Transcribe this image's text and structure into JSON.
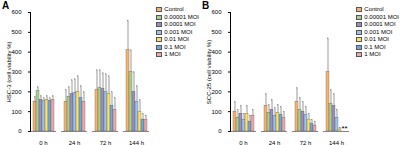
{
  "chart_data": [
    {
      "type": "bar",
      "title": "A",
      "ylabel": "HSC-3 (cell viability %)",
      "categories": [
        "0 h",
        "24 h",
        "72 h",
        "144 h"
      ],
      "ylim": [
        0,
        600
      ],
      "yticks": [
        0,
        100,
        200,
        300,
        400,
        500,
        600
      ],
      "legend": "right",
      "series": [
        {
          "name": "Control",
          "color": "#f8b36b",
          "values": [
            150,
            150,
            210,
            410
          ],
          "errors": [
            25,
            60,
            100,
            150
          ]
        },
        {
          "name": "0.00001 MOI",
          "color": "#a8d08d",
          "values": [
            205,
            175,
            220,
            300
          ],
          "errors": [
            20,
            50,
            90,
            110
          ]
        },
        {
          "name": "0.0001 MOI",
          "color": "#9b8ec4",
          "values": [
            160,
            190,
            215,
            200
          ],
          "errors": [
            20,
            70,
            80,
            100
          ]
        },
        {
          "name": "0.001 MOI",
          "color": "#9dc3e6",
          "values": [
            155,
            195,
            200,
            150
          ],
          "errors": [
            15,
            70,
            90,
            80
          ]
        },
        {
          "name": "0.01 MOI",
          "color": "#ffe066",
          "values": [
            160,
            200,
            190,
            100
          ],
          "errors": [
            20,
            80,
            90,
            60
          ]
        },
        {
          "name": "0.1 MOI",
          "color": "#6fa8dc",
          "values": [
            155,
            170,
            130,
            60
          ],
          "errors": [
            15,
            60,
            70,
            30
          ]
        },
        {
          "name": "1 MOI",
          "color": "#f4a6a6",
          "values": [
            160,
            150,
            110,
            60
          ],
          "errors": [
            20,
            50,
            60,
            20
          ]
        }
      ]
    },
    {
      "type": "bar",
      "title": "B",
      "ylabel": "SCC-25 (cell viability %)",
      "categories": [
        "0 h",
        "24 h",
        "72 h",
        "144 h"
      ],
      "ylim": [
        0,
        600
      ],
      "yticks": [
        0,
        100,
        200,
        300,
        400,
        500,
        600
      ],
      "legend": "right",
      "series": [
        {
          "name": "Control",
          "color": "#f8b36b",
          "values": [
            100,
            130,
            150,
            300
          ],
          "errors": [
            50,
            60,
            70,
            170
          ]
        },
        {
          "name": "0.00001 MOI",
          "color": "#a8d08d",
          "values": [
            70,
            95,
            110,
            140
          ],
          "errors": [
            40,
            40,
            60,
            70
          ]
        },
        {
          "name": "0.0001 MOI",
          "color": "#9b8ec4",
          "values": [
            90,
            110,
            100,
            130
          ],
          "errors": [
            40,
            50,
            50,
            60
          ]
        },
        {
          "name": "0.001 MOI",
          "color": "#9dc3e6",
          "values": [
            60,
            80,
            85,
            70
          ],
          "errors": [
            30,
            40,
            40,
            40
          ]
        },
        {
          "name": "0.01 MOI",
          "color": "#ffe066",
          "values": [
            90,
            95,
            60,
            10
          ],
          "errors": [
            40,
            40,
            30,
            10
          ]
        },
        {
          "name": "0.1 MOI",
          "color": "#6fa8dc",
          "values": [
            50,
            85,
            40,
            0
          ],
          "errors": [
            30,
            40,
            20,
            0
          ]
        },
        {
          "name": "1 MOI",
          "color": "#f4a6a6",
          "values": [
            80,
            70,
            30,
            0
          ],
          "errors": [
            30,
            30,
            20,
            0
          ]
        }
      ],
      "annotations": [
        {
          "category": "144 h",
          "series": "0.1 MOI",
          "text": "*"
        },
        {
          "category": "144 h",
          "series": "1 MOI",
          "text": "*"
        }
      ]
    }
  ]
}
